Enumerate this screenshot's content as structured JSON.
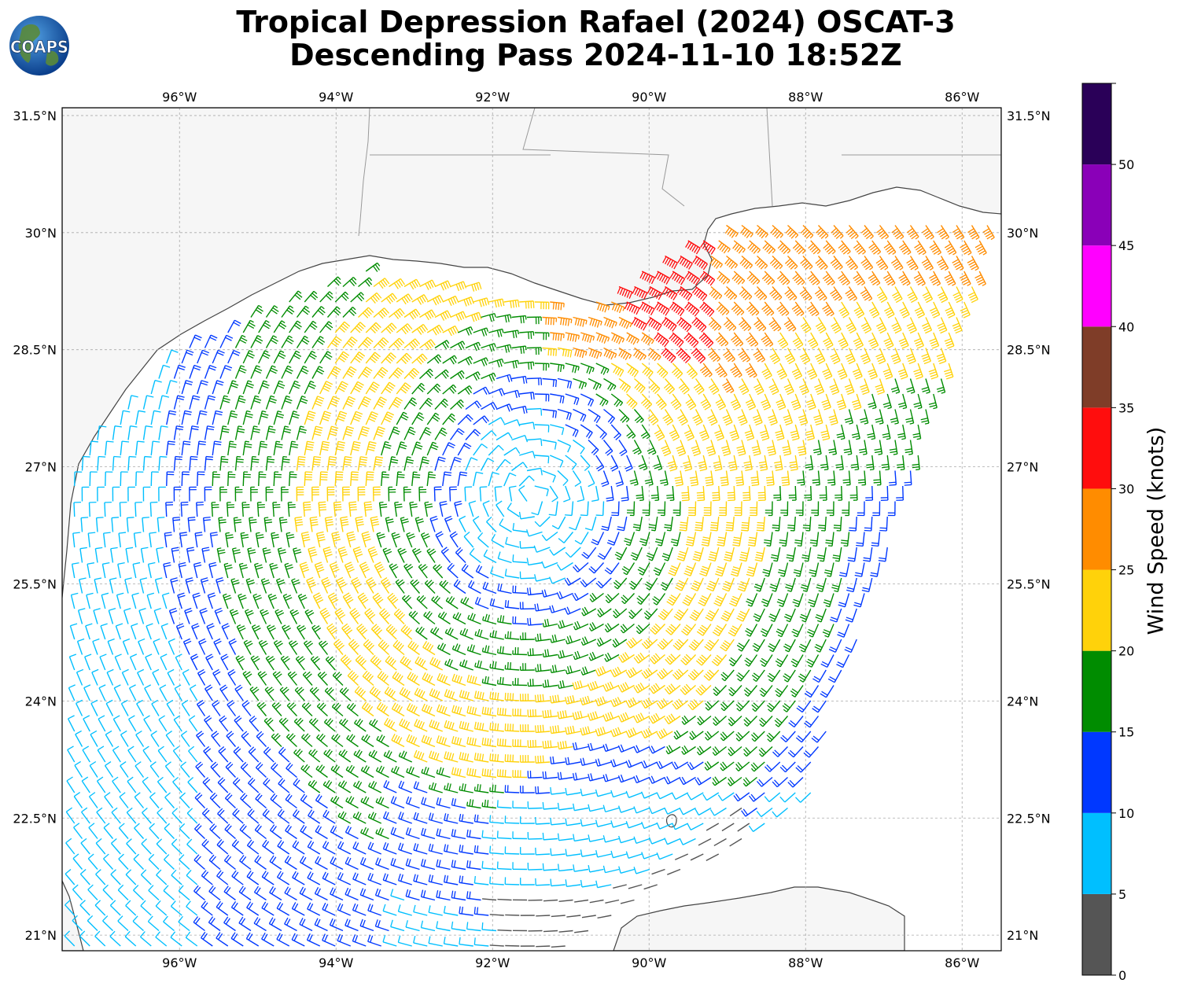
{
  "title": {
    "line1": "Tropical Depression Rafael (2024) OSCAT-3",
    "line2": "Descending Pass 2024-11-10 18:52Z"
  },
  "logo": {
    "text": "COAPS",
    "icon": "globe-logo"
  },
  "map": {
    "lon_range": [
      -97.5,
      -85.5
    ],
    "lat_range": [
      20.8,
      31.6
    ],
    "lon_ticks": [
      {
        "value": -96,
        "label": "96°W"
      },
      {
        "value": -94,
        "label": "94°W"
      },
      {
        "value": -92,
        "label": "92°W"
      },
      {
        "value": -90,
        "label": "90°W"
      },
      {
        "value": -88,
        "label": "88°W"
      },
      {
        "value": -86,
        "label": "86°W"
      }
    ],
    "lat_ticks": [
      {
        "value": 31.5,
        "label": "31.5°N"
      },
      {
        "value": 30,
        "label": "30°N"
      },
      {
        "value": 28.5,
        "label": "28.5°N"
      },
      {
        "value": 27,
        "label": "27°N"
      },
      {
        "value": 25.5,
        "label": "25.5°N"
      },
      {
        "value": 24,
        "label": "24°N"
      },
      {
        "value": 22.5,
        "label": "22.5°N"
      },
      {
        "value": 21,
        "label": "21°N"
      }
    ],
    "grid": true,
    "storm_center": {
      "lon": -91.5,
      "lat": 26.6
    },
    "land_color": "#f7f7f7",
    "coast_color": "#444444"
  },
  "colorbar": {
    "label": "Wind Speed (knots)",
    "bins": [
      {
        "min": 0,
        "max": 5,
        "color": "#555555"
      },
      {
        "min": 5,
        "max": 10,
        "color": "#00bfff"
      },
      {
        "min": 10,
        "max": 15,
        "color": "#0038ff"
      },
      {
        "min": 15,
        "max": 20,
        "color": "#008c00"
      },
      {
        "min": 20,
        "max": 25,
        "color": "#ffd20a"
      },
      {
        "min": 25,
        "max": 30,
        "color": "#ff8c00"
      },
      {
        "min": 30,
        "max": 35,
        "color": "#ff0d0d"
      },
      {
        "min": 35,
        "max": 40,
        "color": "#7f3d28"
      },
      {
        "min": 40,
        "max": 45,
        "color": "#ff00ff"
      },
      {
        "min": 45,
        "max": 50,
        "color": "#8a00b8"
      },
      {
        "min": 50,
        "max": 55,
        "color": "#2a0058"
      }
    ],
    "ticks": [
      "0",
      "5",
      "10",
      "15",
      "20",
      "25",
      "30",
      "35",
      "40",
      "45",
      "50"
    ]
  }
}
